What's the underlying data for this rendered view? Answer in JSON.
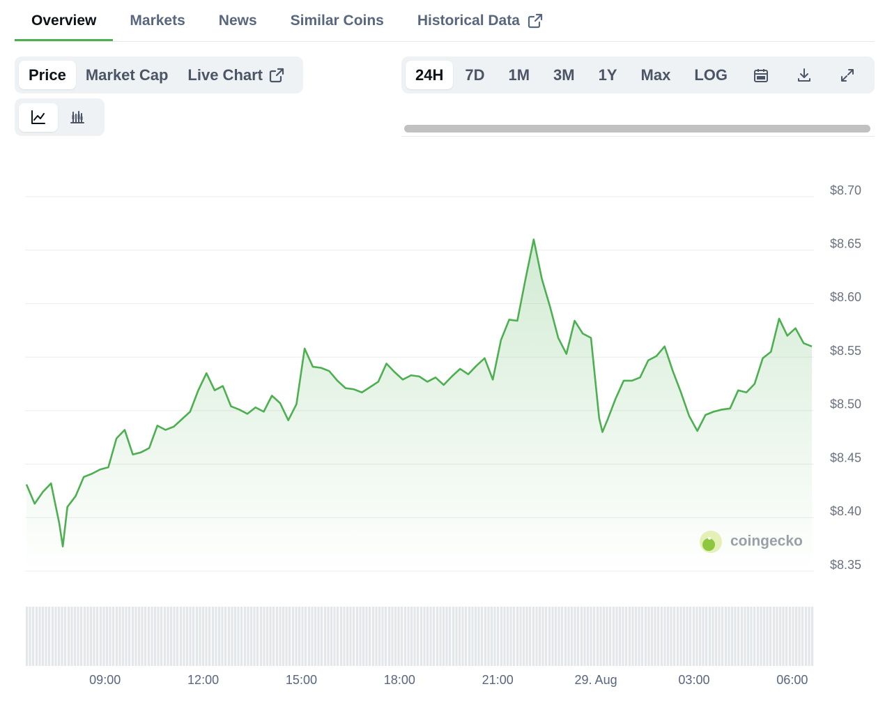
{
  "tabs": [
    "Overview",
    "Markets",
    "News",
    "Similar Coins",
    "Historical Data"
  ],
  "chart_tabs": [
    "Price",
    "Market Cap",
    "Live Chart"
  ],
  "ranges": [
    "24H",
    "7D",
    "1M",
    "3M",
    "1Y",
    "Max",
    "LOG"
  ],
  "watermark": "coingecko",
  "chart_data": {
    "type": "line",
    "color": "#4caf50",
    "grid": true,
    "x": [
      6.6,
      6.85,
      7.1,
      7.35,
      7.6,
      7.71,
      7.85,
      8.1,
      8.35,
      8.6,
      8.85,
      9.1,
      9.35,
      9.6,
      9.85,
      10.1,
      10.35,
      10.6,
      10.85,
      11.1,
      11.35,
      11.6,
      11.85,
      12.1,
      12.35,
      12.6,
      12.85,
      13.1,
      13.35,
      13.6,
      13.85,
      14.1,
      14.35,
      14.6,
      14.85,
      15.1,
      15.35,
      15.6,
      15.85,
      16.1,
      16.35,
      16.6,
      16.85,
      17.1,
      17.35,
      17.6,
      17.85,
      18.1,
      18.35,
      18.6,
      18.85,
      19.1,
      19.35,
      19.6,
      19.85,
      20.1,
      20.35,
      20.6,
      20.85,
      21.1,
      21.35,
      21.6,
      21.85,
      22.1,
      22.35,
      22.6,
      22.85,
      23.1,
      23.35,
      23.6,
      23.85,
      24.1,
      24.2,
      24.35,
      24.6,
      24.85,
      25.1,
      25.35,
      25.6,
      25.85,
      26.1,
      26.35,
      26.6,
      26.85,
      27.1,
      27.35,
      27.6,
      27.85,
      28.1,
      28.35,
      28.6,
      28.85,
      29.1,
      29.35,
      29.6,
      29.85,
      30.1,
      30.35,
      30.6
    ],
    "values": [
      8.431,
      8.413,
      8.424,
      8.432,
      8.395,
      8.373,
      8.41,
      8.42,
      8.438,
      8.441,
      8.445,
      8.447,
      8.474,
      8.482,
      8.459,
      8.461,
      8.465,
      8.486,
      8.482,
      8.485,
      8.492,
      8.499,
      8.519,
      8.535,
      8.519,
      8.523,
      8.504,
      8.501,
      8.497,
      8.503,
      8.499,
      8.514,
      8.507,
      8.491,
      8.506,
      8.558,
      8.541,
      8.54,
      8.537,
      8.528,
      8.521,
      8.52,
      8.517,
      8.522,
      8.527,
      8.544,
      8.536,
      8.529,
      8.533,
      8.532,
      8.527,
      8.531,
      8.524,
      8.532,
      8.539,
      8.534,
      8.542,
      8.549,
      8.529,
      8.566,
      8.585,
      8.584,
      8.623,
      8.66,
      8.623,
      8.597,
      8.568,
      8.553,
      8.584,
      8.572,
      8.568,
      8.493,
      8.48,
      8.491,
      8.511,
      8.528,
      8.528,
      8.531,
      8.547,
      8.551,
      8.56,
      8.537,
      8.517,
      8.495,
      8.481,
      8.496,
      8.499,
      8.501,
      8.502,
      8.519,
      8.517,
      8.525,
      8.549,
      8.555,
      8.586,
      8.57,
      8.577,
      8.563,
      8.56
    ],
    "xlim": [
      6.6,
      30.6
    ],
    "xticks": [
      {
        "value": 9,
        "label": "09:00"
      },
      {
        "value": 12,
        "label": "12:00"
      },
      {
        "value": 15,
        "label": "15:00"
      },
      {
        "value": 18,
        "label": "18:00"
      },
      {
        "value": 21,
        "label": "21:00"
      },
      {
        "value": 24,
        "label": "29. Aug"
      },
      {
        "value": 27,
        "label": "03:00"
      },
      {
        "value": 30,
        "label": "06:00"
      }
    ],
    "ylim": [
      8.35,
      8.7
    ],
    "yticks": [
      {
        "value": 8.7,
        "label": "$8.70"
      },
      {
        "value": 8.65,
        "label": "$8.65"
      },
      {
        "value": 8.6,
        "label": "$8.60"
      },
      {
        "value": 8.55,
        "label": "$8.55"
      },
      {
        "value": 8.5,
        "label": "$8.50"
      },
      {
        "value": 8.45,
        "label": "$8.45"
      },
      {
        "value": 8.4,
        "label": "$8.40"
      },
      {
        "value": 8.35,
        "label": "$8.35"
      }
    ]
  }
}
